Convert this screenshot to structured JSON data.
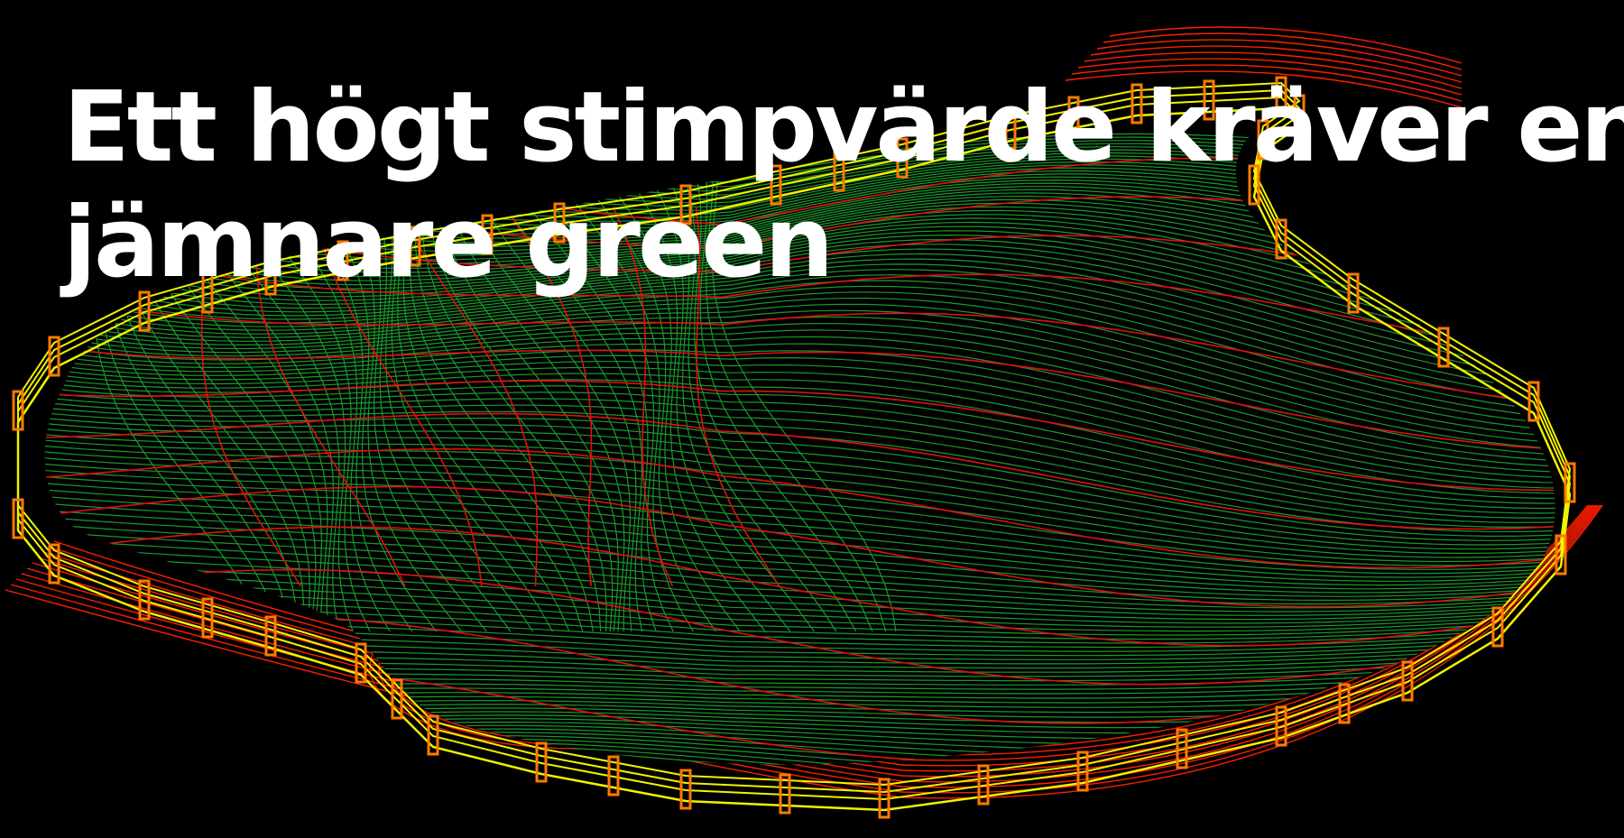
{
  "headline": {
    "line1": "Ett högt stimpvärde kräver en",
    "line2": "jämnare green"
  },
  "image": {
    "subject": "golf-green-contour-map",
    "colors": {
      "background": "#000000",
      "contour_fine": "#1a9a2e",
      "contour_major": "#e01010",
      "fringe": "#ff1e00",
      "fence_rail": "#f2f200",
      "fence_post": "#ff7a00",
      "headline": "#ffffff"
    }
  }
}
